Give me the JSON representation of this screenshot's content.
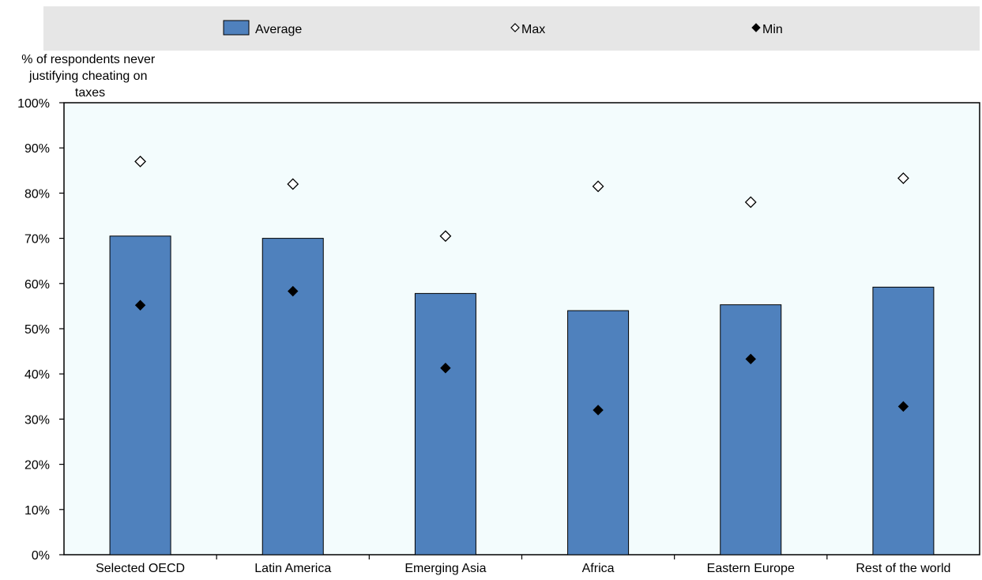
{
  "chart_data": {
    "type": "bar",
    "ylabel": "% of respondents never justifying cheating on taxes",
    "ylabel_lines": [
      "% of respondents never",
      "justifying cheating on",
      "taxes"
    ],
    "categories": [
      "Selected OECD",
      "Latin America",
      "Emerging Asia",
      "Africa",
      "Eastern Europe",
      "Rest of the world"
    ],
    "series": [
      {
        "name": "Average",
        "kind": "bar",
        "values": [
          70.5,
          70.0,
          57.8,
          54.0,
          55.3,
          59.2
        ]
      },
      {
        "name": "Max",
        "kind": "marker-open-diamond",
        "values": [
          87.0,
          82.0,
          70.5,
          81.5,
          78.0,
          83.3
        ]
      },
      {
        "name": "Min",
        "kind": "marker-filled-diamond",
        "values": [
          55.2,
          58.3,
          41.3,
          32.0,
          43.3,
          32.8
        ]
      }
    ],
    "ylim": [
      0,
      100
    ],
    "yticks": [
      "0%",
      "10%",
      "20%",
      "30%",
      "40%",
      "50%",
      "60%",
      "70%",
      "80%",
      "90%",
      "100%"
    ],
    "legend_position": "top",
    "grid": false,
    "colors": {
      "bar": "#4f81bd",
      "bar_stroke": "#000000",
      "plot_background": "#f3fcfd",
      "legend_background": "#e6e6e6",
      "marker": "#000000"
    }
  }
}
